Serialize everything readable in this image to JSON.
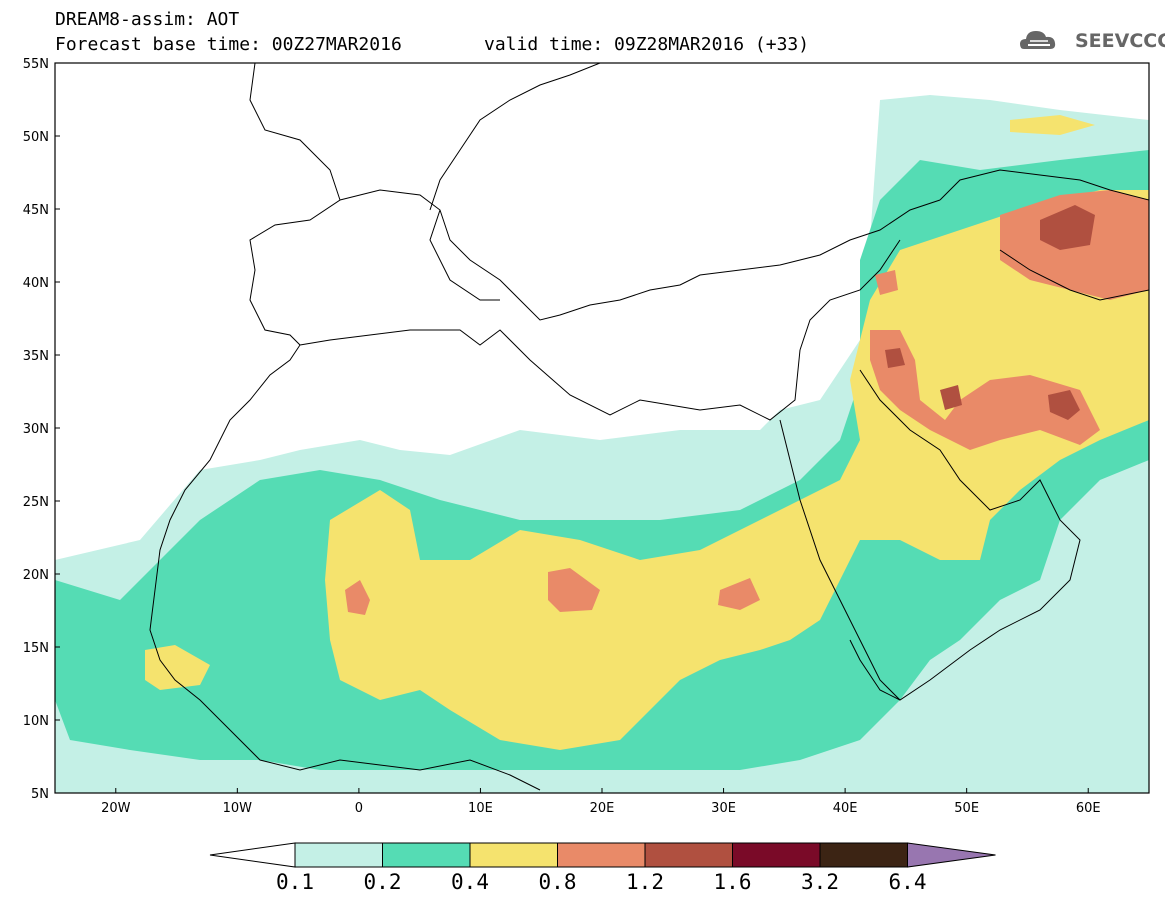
{
  "header": {
    "model_line": "DREAM8-assim: AOT",
    "base_time": "Forecast base time: 00Z27MAR2016",
    "valid_time": "valid time: 09Z28MAR2016 (+33)",
    "logo_text": "SEEVCCC"
  },
  "axes": {
    "lat_labels": [
      "55N",
      "50N",
      "45N",
      "40N",
      "35N",
      "30N",
      "25N",
      "20N",
      "15N",
      "10N",
      "5N"
    ],
    "lon_labels": [
      "20W",
      "10W",
      "0",
      "10E",
      "20E",
      "30E",
      "40E",
      "50E",
      "60E"
    ]
  },
  "colorbar": {
    "labels": [
      "0.1",
      "0.2",
      "0.4",
      "0.8",
      "1.2",
      "1.6",
      "3.2",
      "6.4"
    ],
    "colors": [
      "#ffffff",
      "#c4f0e6",
      "#55dcb4",
      "#f5e36e",
      "#e98a68",
      "#b05040",
      "#7a0a28",
      "#3c2414",
      "#9876b0"
    ]
  },
  "map": {
    "variable": "AOT",
    "lon_range": [
      -25,
      65
    ],
    "lat_range": [
      5,
      55
    ]
  }
}
